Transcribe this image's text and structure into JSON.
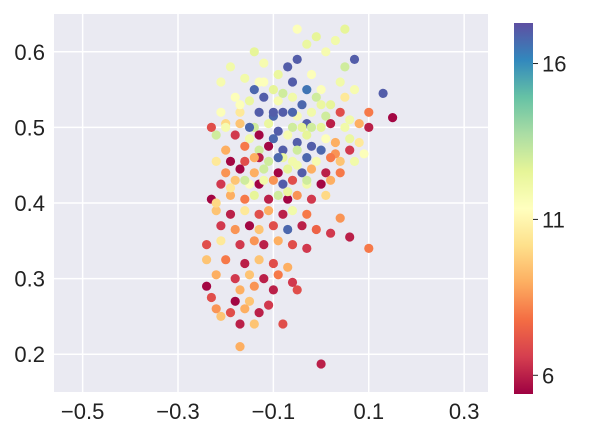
{
  "chart_data": {
    "type": "scatter",
    "title": "",
    "xlabel": "",
    "ylabel": "",
    "xlim": [
      -0.56,
      0.35
    ],
    "ylim": [
      0.15,
      0.65
    ],
    "xticks": [
      -0.5,
      -0.3,
      -0.1,
      0.1,
      0.3
    ],
    "xtick_labels": [
      "−0.5",
      "−0.3",
      "−0.1",
      "0.1",
      "0.3"
    ],
    "yticks": [
      0.2,
      0.3,
      0.4,
      0.5,
      0.6
    ],
    "ytick_labels": [
      "0.2",
      "0.3",
      "0.4",
      "0.5",
      "0.6"
    ],
    "grid": true,
    "background": "#eaeaf2",
    "grid_color": "#ffffff",
    "colormap": "Spectral",
    "colorbar": {
      "range": [
        5.4,
        17.3
      ],
      "ticks": [
        6,
        11,
        16
      ],
      "tick_labels": [
        "6",
        "11",
        "16"
      ]
    },
    "points": [
      {
        "x": -0.05,
        "y": 0.63,
        "c": 11.5
      },
      {
        "x": 0.05,
        "y": 0.63,
        "c": 12.5
      },
      {
        "x": 0.03,
        "y": 0.615,
        "c": 12.0
      },
      {
        "x": -0.01,
        "y": 0.62,
        "c": 12.5
      },
      {
        "x": 0.01,
        "y": 0.6,
        "c": 11.8
      },
      {
        "x": -0.03,
        "y": 0.61,
        "c": 12.3
      },
      {
        "x": 0.07,
        "y": 0.59,
        "c": 17.0
      },
      {
        "x": -0.19,
        "y": 0.58,
        "c": 12.0
      },
      {
        "x": -0.14,
        "y": 0.6,
        "c": 12.5
      },
      {
        "x": -0.12,
        "y": 0.585,
        "c": 11.8
      },
      {
        "x": -0.09,
        "y": 0.57,
        "c": 12.3
      },
      {
        "x": -0.07,
        "y": 0.58,
        "c": 17.0
      },
      {
        "x": -0.05,
        "y": 0.59,
        "c": 17.0
      },
      {
        "x": -0.02,
        "y": 0.57,
        "c": 11.5
      },
      {
        "x": 0.05,
        "y": 0.58,
        "c": 13.0
      },
      {
        "x": -0.21,
        "y": 0.56,
        "c": 11.8
      },
      {
        "x": -0.16,
        "y": 0.565,
        "c": 12.0
      },
      {
        "x": -0.13,
        "y": 0.56,
        "c": 11.5
      },
      {
        "x": -0.1,
        "y": 0.55,
        "c": 12.5
      },
      {
        "x": -0.06,
        "y": 0.56,
        "c": 17.0
      },
      {
        "x": -0.03,
        "y": 0.55,
        "c": 16.5
      },
      {
        "x": 0.0,
        "y": 0.55,
        "c": 11.5
      },
      {
        "x": 0.04,
        "y": 0.56,
        "c": 12.0
      },
      {
        "x": 0.07,
        "y": 0.55,
        "c": 11.8
      },
      {
        "x": -0.18,
        "y": 0.54,
        "c": 11.5
      },
      {
        "x": -0.15,
        "y": 0.535,
        "c": 12.3
      },
      {
        "x": -0.14,
        "y": 0.55,
        "c": 16.8
      },
      {
        "x": -0.12,
        "y": 0.54,
        "c": 17.0
      },
      {
        "x": -0.09,
        "y": 0.535,
        "c": 11.8
      },
      {
        "x": -0.06,
        "y": 0.54,
        "c": 12.0
      },
      {
        "x": -0.04,
        "y": 0.53,
        "c": 16.8
      },
      {
        "x": -0.01,
        "y": 0.54,
        "c": 13.0
      },
      {
        "x": 0.02,
        "y": 0.53,
        "c": 12.5
      },
      {
        "x": 0.05,
        "y": 0.54,
        "c": 10.5
      },
      {
        "x": 0.13,
        "y": 0.545,
        "c": 17.0
      },
      {
        "x": -0.21,
        "y": 0.52,
        "c": 11.5
      },
      {
        "x": -0.17,
        "y": 0.52,
        "c": 10.5
      },
      {
        "x": -0.13,
        "y": 0.52,
        "c": 17.0
      },
      {
        "x": -0.1,
        "y": 0.515,
        "c": 16.8
      },
      {
        "x": -0.08,
        "y": 0.52,
        "c": 17.0
      },
      {
        "x": -0.05,
        "y": 0.515,
        "c": 11.8
      },
      {
        "x": -0.02,
        "y": 0.52,
        "c": 12.0
      },
      {
        "x": 0.01,
        "y": 0.515,
        "c": 13.0
      },
      {
        "x": 0.04,
        "y": 0.52,
        "c": 7.0
      },
      {
        "x": 0.06,
        "y": 0.51,
        "c": 12.0
      },
      {
        "x": 0.1,
        "y": 0.52,
        "c": 8.0
      },
      {
        "x": 0.15,
        "y": 0.513,
        "c": 5.5
      },
      {
        "x": -0.23,
        "y": 0.5,
        "c": 7.0
      },
      {
        "x": -0.2,
        "y": 0.505,
        "c": 10.0
      },
      {
        "x": -0.17,
        "y": 0.505,
        "c": 9.5
      },
      {
        "x": -0.14,
        "y": 0.5,
        "c": 13.0
      },
      {
        "x": -0.11,
        "y": 0.505,
        "c": 12.3
      },
      {
        "x": -0.09,
        "y": 0.495,
        "c": 17.0
      },
      {
        "x": -0.06,
        "y": 0.5,
        "c": 13.0
      },
      {
        "x": -0.03,
        "y": 0.505,
        "c": 17.0
      },
      {
        "x": 0.0,
        "y": 0.5,
        "c": 12.5
      },
      {
        "x": 0.02,
        "y": 0.505,
        "c": 6.0
      },
      {
        "x": 0.05,
        "y": 0.5,
        "c": 12.0
      },
      {
        "x": 0.08,
        "y": 0.505,
        "c": 9.0
      },
      {
        "x": 0.1,
        "y": 0.5,
        "c": 6.0
      },
      {
        "x": -0.22,
        "y": 0.49,
        "c": 13.0
      },
      {
        "x": -0.18,
        "y": 0.49,
        "c": 6.5
      },
      {
        "x": -0.15,
        "y": 0.485,
        "c": 12.0
      },
      {
        "x": -0.13,
        "y": 0.49,
        "c": 5.5
      },
      {
        "x": -0.1,
        "y": 0.485,
        "c": 16.8
      },
      {
        "x": -0.07,
        "y": 0.49,
        "c": 11.8
      },
      {
        "x": -0.05,
        "y": 0.48,
        "c": 17.0
      },
      {
        "x": -0.03,
        "y": 0.49,
        "c": 12.5
      },
      {
        "x": 0.01,
        "y": 0.485,
        "c": 11.5
      },
      {
        "x": 0.03,
        "y": 0.48,
        "c": 9.0
      },
      {
        "x": 0.06,
        "y": 0.485,
        "c": 12.3
      },
      {
        "x": 0.08,
        "y": 0.48,
        "c": 10.5
      },
      {
        "x": -0.2,
        "y": 0.47,
        "c": 9.0
      },
      {
        "x": -0.16,
        "y": 0.475,
        "c": 8.0
      },
      {
        "x": -0.13,
        "y": 0.47,
        "c": 13.0
      },
      {
        "x": -0.11,
        "y": 0.475,
        "c": 5.5
      },
      {
        "x": -0.08,
        "y": 0.47,
        "c": 17.0
      },
      {
        "x": -0.05,
        "y": 0.47,
        "c": 13.0
      },
      {
        "x": -0.02,
        "y": 0.475,
        "c": 17.0
      },
      {
        "x": 0.0,
        "y": 0.47,
        "c": 16.8
      },
      {
        "x": 0.03,
        "y": 0.465,
        "c": 8.5
      },
      {
        "x": 0.06,
        "y": 0.47,
        "c": 6.5
      },
      {
        "x": 0.09,
        "y": 0.465,
        "c": 11.5
      },
      {
        "x": -0.22,
        "y": 0.455,
        "c": 10.5
      },
      {
        "x": -0.19,
        "y": 0.455,
        "c": 5.5
      },
      {
        "x": -0.16,
        "y": 0.455,
        "c": 7.0
      },
      {
        "x": -0.13,
        "y": 0.46,
        "c": 6.0
      },
      {
        "x": -0.11,
        "y": 0.455,
        "c": 13.0
      },
      {
        "x": -0.08,
        "y": 0.46,
        "c": 12.3
      },
      {
        "x": -0.06,
        "y": 0.455,
        "c": 12.0
      },
      {
        "x": -0.03,
        "y": 0.46,
        "c": 16.8
      },
      {
        "x": -0.01,
        "y": 0.455,
        "c": 11.8
      },
      {
        "x": 0.02,
        "y": 0.46,
        "c": 8.0
      },
      {
        "x": 0.04,
        "y": 0.455,
        "c": 9.5
      },
      {
        "x": 0.07,
        "y": 0.455,
        "c": 12.0
      },
      {
        "x": -0.2,
        "y": 0.44,
        "c": 8.5
      },
      {
        "x": -0.17,
        "y": 0.445,
        "c": 5.5
      },
      {
        "x": -0.14,
        "y": 0.44,
        "c": 9.0
      },
      {
        "x": -0.12,
        "y": 0.445,
        "c": 13.0
      },
      {
        "x": -0.09,
        "y": 0.44,
        "c": 5.5
      },
      {
        "x": -0.07,
        "y": 0.445,
        "c": 12.5
      },
      {
        "x": -0.04,
        "y": 0.44,
        "c": 17.0
      },
      {
        "x": -0.02,
        "y": 0.445,
        "c": 9.0
      },
      {
        "x": 0.01,
        "y": 0.44,
        "c": 6.0
      },
      {
        "x": 0.04,
        "y": 0.44,
        "c": 8.0
      },
      {
        "x": -0.21,
        "y": 0.425,
        "c": 6.5
      },
      {
        "x": -0.18,
        "y": 0.43,
        "c": 9.5
      },
      {
        "x": -0.15,
        "y": 0.425,
        "c": 11.5
      },
      {
        "x": -0.13,
        "y": 0.425,
        "c": 5.5
      },
      {
        "x": -0.1,
        "y": 0.43,
        "c": 8.5
      },
      {
        "x": -0.08,
        "y": 0.425,
        "c": 17.0
      },
      {
        "x": -0.06,
        "y": 0.43,
        "c": 7.0
      },
      {
        "x": -0.03,
        "y": 0.425,
        "c": 12.0
      },
      {
        "x": 0.0,
        "y": 0.425,
        "c": 5.5
      },
      {
        "x": 0.02,
        "y": 0.43,
        "c": 9.0
      },
      {
        "x": -0.23,
        "y": 0.405,
        "c": 5.5
      },
      {
        "x": -0.19,
        "y": 0.41,
        "c": 9.0
      },
      {
        "x": -0.16,
        "y": 0.405,
        "c": 8.0
      },
      {
        "x": -0.14,
        "y": 0.41,
        "c": 12.5
      },
      {
        "x": -0.11,
        "y": 0.405,
        "c": 6.0
      },
      {
        "x": -0.09,
        "y": 0.41,
        "c": 13.0
      },
      {
        "x": -0.07,
        "y": 0.405,
        "c": 5.5
      },
      {
        "x": -0.05,
        "y": 0.41,
        "c": 8.5
      },
      {
        "x": -0.02,
        "y": 0.405,
        "c": 6.5
      },
      {
        "x": 0.01,
        "y": 0.41,
        "c": 10.0
      },
      {
        "x": -0.22,
        "y": 0.39,
        "c": 9.5
      },
      {
        "x": -0.19,
        "y": 0.385,
        "c": 6.0
      },
      {
        "x": -0.16,
        "y": 0.39,
        "c": 10.5
      },
      {
        "x": -0.13,
        "y": 0.385,
        "c": 7.0
      },
      {
        "x": -0.11,
        "y": 0.39,
        "c": 9.0
      },
      {
        "x": -0.08,
        "y": 0.385,
        "c": 6.0
      },
      {
        "x": -0.06,
        "y": 0.39,
        "c": 12.0
      },
      {
        "x": -0.03,
        "y": 0.385,
        "c": 8.0
      },
      {
        "x": 0.04,
        "y": 0.38,
        "c": 8.5
      },
      {
        "x": -0.21,
        "y": 0.37,
        "c": 6.5
      },
      {
        "x": -0.18,
        "y": 0.365,
        "c": 8.5
      },
      {
        "x": -0.15,
        "y": 0.37,
        "c": 5.5
      },
      {
        "x": -0.13,
        "y": 0.365,
        "c": 9.5
      },
      {
        "x": -0.1,
        "y": 0.37,
        "c": 7.0
      },
      {
        "x": -0.07,
        "y": 0.365,
        "c": 16.8
      },
      {
        "x": -0.04,
        "y": 0.37,
        "c": 6.0
      },
      {
        "x": -0.01,
        "y": 0.365,
        "c": 7.5
      },
      {
        "x": 0.02,
        "y": 0.36,
        "c": 6.5
      },
      {
        "x": 0.06,
        "y": 0.355,
        "c": 6.0
      },
      {
        "x": -0.24,
        "y": 0.345,
        "c": 7.0
      },
      {
        "x": -0.21,
        "y": 0.35,
        "c": 10.5
      },
      {
        "x": -0.17,
        "y": 0.345,
        "c": 6.5
      },
      {
        "x": -0.14,
        "y": 0.35,
        "c": 8.5
      },
      {
        "x": -0.12,
        "y": 0.345,
        "c": 6.0
      },
      {
        "x": -0.09,
        "y": 0.35,
        "c": 9.0
      },
      {
        "x": -0.06,
        "y": 0.345,
        "c": 7.0
      },
      {
        "x": -0.03,
        "y": 0.34,
        "c": 6.5
      },
      {
        "x": 0.1,
        "y": 0.34,
        "c": 8.0
      },
      {
        "x": -0.24,
        "y": 0.325,
        "c": 9.5
      },
      {
        "x": -0.2,
        "y": 0.325,
        "c": 8.0
      },
      {
        "x": -0.16,
        "y": 0.32,
        "c": 6.0
      },
      {
        "x": -0.13,
        "y": 0.325,
        "c": 9.5
      },
      {
        "x": -0.1,
        "y": 0.32,
        "c": 7.0
      },
      {
        "x": -0.07,
        "y": 0.315,
        "c": 9.0
      },
      {
        "x": -0.22,
        "y": 0.305,
        "c": 9.0
      },
      {
        "x": -0.18,
        "y": 0.3,
        "c": 6.5
      },
      {
        "x": -0.15,
        "y": 0.305,
        "c": 9.5
      },
      {
        "x": -0.12,
        "y": 0.3,
        "c": 6.0
      },
      {
        "x": -0.09,
        "y": 0.305,
        "c": 8.0
      },
      {
        "x": -0.06,
        "y": 0.295,
        "c": 6.5
      },
      {
        "x": -0.24,
        "y": 0.29,
        "c": 5.5
      },
      {
        "x": -0.17,
        "y": 0.285,
        "c": 9.0
      },
      {
        "x": -0.14,
        "y": 0.29,
        "c": 8.5
      },
      {
        "x": -0.1,
        "y": 0.285,
        "c": 6.0
      },
      {
        "x": -0.05,
        "y": 0.285,
        "c": 7.0
      },
      {
        "x": -0.23,
        "y": 0.275,
        "c": 7.0
      },
      {
        "x": -0.18,
        "y": 0.27,
        "c": 5.5
      },
      {
        "x": -0.15,
        "y": 0.27,
        "c": 9.5
      },
      {
        "x": -0.11,
        "y": 0.265,
        "c": 6.5
      },
      {
        "x": -0.22,
        "y": 0.26,
        "c": 8.5
      },
      {
        "x": -0.19,
        "y": 0.255,
        "c": 7.0
      },
      {
        "x": -0.16,
        "y": 0.26,
        "c": 9.0
      },
      {
        "x": -0.13,
        "y": 0.255,
        "c": 6.0
      },
      {
        "x": -0.21,
        "y": 0.25,
        "c": 9.5
      },
      {
        "x": -0.17,
        "y": 0.24,
        "c": 6.0
      },
      {
        "x": -0.14,
        "y": 0.24,
        "c": 9.5
      },
      {
        "x": -0.08,
        "y": 0.24,
        "c": 7.0
      },
      {
        "x": -0.17,
        "y": 0.21,
        "c": 9.0
      },
      {
        "x": 0.0,
        "y": 0.187,
        "c": 6.0
      },
      {
        "x": -0.22,
        "y": 0.4,
        "c": 10.0
      },
      {
        "x": -0.19,
        "y": 0.42,
        "c": 10.5
      },
      {
        "x": -0.16,
        "y": 0.43,
        "c": 13.0
      },
      {
        "x": -0.12,
        "y": 0.43,
        "c": 12.0
      },
      {
        "x": -0.07,
        "y": 0.415,
        "c": 12.3
      },
      {
        "x": -0.14,
        "y": 0.46,
        "c": 9.0
      },
      {
        "x": -0.2,
        "y": 0.5,
        "c": 11.8
      },
      {
        "x": -0.17,
        "y": 0.53,
        "c": 11.5
      },
      {
        "x": -0.12,
        "y": 0.56,
        "c": 11.5
      },
      {
        "x": -0.08,
        "y": 0.545,
        "c": 13.0
      },
      {
        "x": -0.04,
        "y": 0.5,
        "c": 12.5
      },
      {
        "x": -0.06,
        "y": 0.52,
        "c": 16.8
      },
      {
        "x": -0.09,
        "y": 0.46,
        "c": 16.8
      },
      {
        "x": -0.03,
        "y": 0.43,
        "c": 13.0
      },
      {
        "x": -0.1,
        "y": 0.52,
        "c": 17.0
      },
      {
        "x": -0.15,
        "y": 0.5,
        "c": 16.8
      },
      {
        "x": 0.0,
        "y": 0.53,
        "c": 12.3
      },
      {
        "x": -0.02,
        "y": 0.5,
        "c": 13.0
      },
      {
        "x": -0.05,
        "y": 0.45,
        "c": 12.0
      }
    ]
  }
}
